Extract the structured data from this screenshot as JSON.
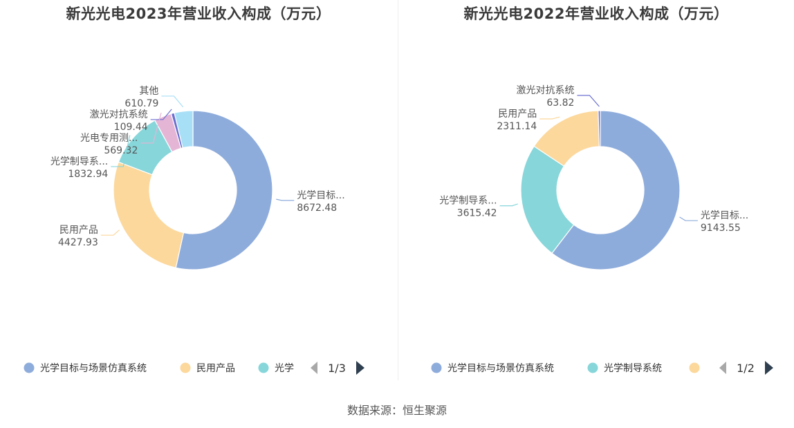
{
  "colors": {
    "title": "#3a3a3a",
    "label": "#555555",
    "legend_text": "#333333",
    "pager_active": "#2f3f4f",
    "pager_inactive": "#a8a8a8"
  },
  "chart_data": [
    {
      "type": "pie",
      "variant": "donut",
      "title": "新光光电2023年营业收入构成（万元）",
      "unit": "万元",
      "slices": [
        {
          "name": "光学目标与场景仿真系统",
          "label": "光学目标...",
          "value": 8672.48,
          "value_text": "8672.48",
          "color": "#8eacdb"
        },
        {
          "name": "民用产品",
          "label": "民用产品",
          "value": 4427.93,
          "value_text": "4427.93",
          "color": "#fcd89c"
        },
        {
          "name": "光学制导系统",
          "label": "光学制导系...",
          "value": 1832.94,
          "value_text": "1832.94",
          "color": "#87d6da"
        },
        {
          "name": "光电专用测试设备",
          "label": "光电专用测...",
          "value": 569.32,
          "value_text": "569.32",
          "color": "#e5b5d6"
        },
        {
          "name": "激光对抗系统",
          "label": "激光对抗系统",
          "value": 109.44,
          "value_text": "109.44",
          "color": "#6b6fd0"
        },
        {
          "name": "其他",
          "label": "其他",
          "value": 610.79,
          "value_text": "610.79",
          "color": "#a7dff7"
        }
      ],
      "legend": {
        "position": "bottom",
        "items": [
          "光学目标与场景仿真系统",
          "民用产品",
          "光学"
        ],
        "item_colors": [
          "#8eacdb",
          "#fcd89c",
          "#87d6da"
        ],
        "page": "1/3"
      }
    },
    {
      "type": "pie",
      "variant": "donut",
      "title": "新光光电2022年营业收入构成（万元）",
      "unit": "万元",
      "slices": [
        {
          "name": "光学目标与场景仿真系统",
          "label": "光学目标...",
          "value": 9143.55,
          "value_text": "9143.55",
          "color": "#8eacdb"
        },
        {
          "name": "光学制导系统",
          "label": "光学制导系...",
          "value": 3615.42,
          "value_text": "3615.42",
          "color": "#87d6da"
        },
        {
          "name": "民用产品",
          "label": "民用产品",
          "value": 2311.14,
          "value_text": "2311.14",
          "color": "#fcd89c"
        },
        {
          "name": "激光对抗系统",
          "label": "激光对抗系统",
          "value": 63.82,
          "value_text": "63.82",
          "color": "#6b6fd0"
        }
      ],
      "legend": {
        "position": "bottom",
        "items": [
          "光学目标与场景仿真系统",
          "光学制导系统",
          ""
        ],
        "item_colors": [
          "#8eacdb",
          "#87d6da",
          "#fcd89c"
        ],
        "page": "1/2"
      }
    }
  ],
  "footer": {
    "source": "数据来源：恒生聚源"
  }
}
